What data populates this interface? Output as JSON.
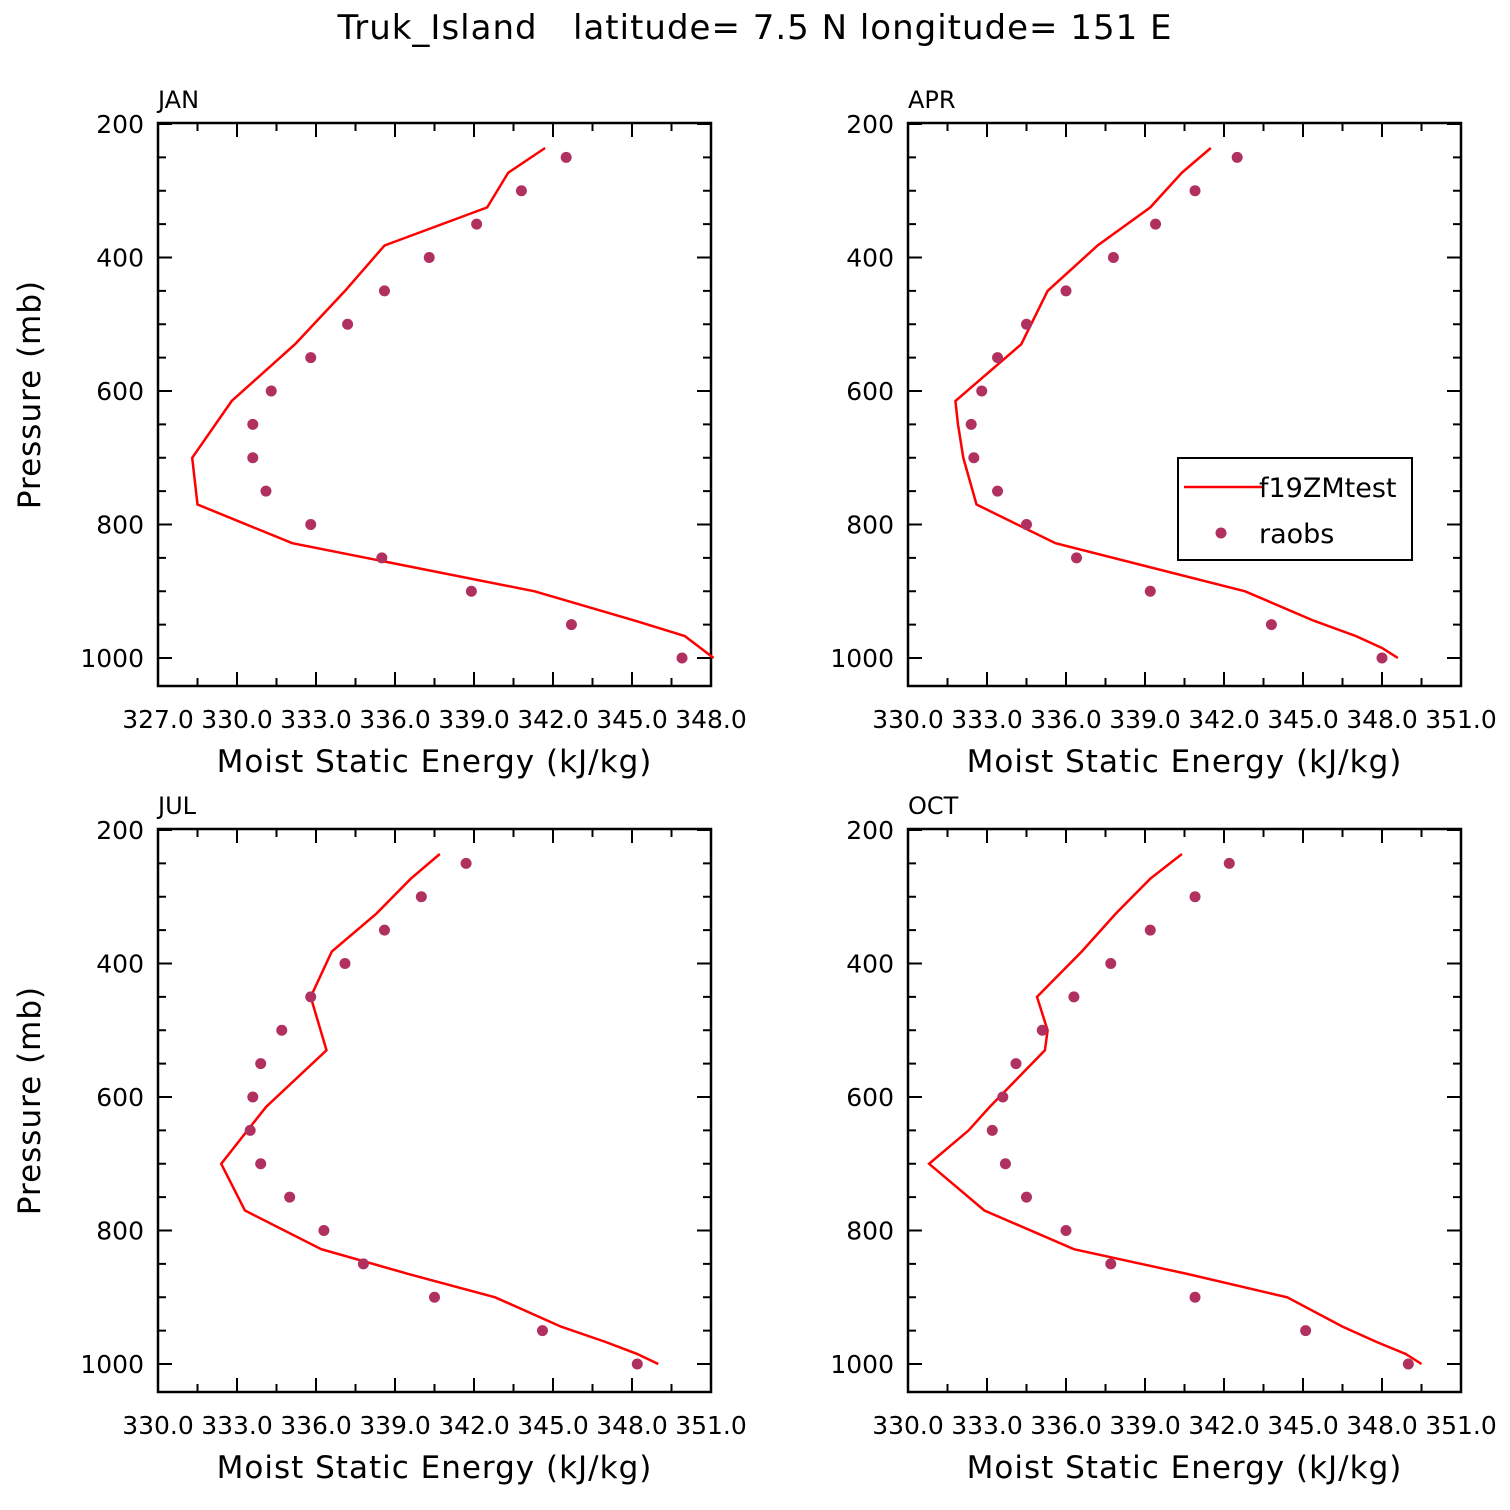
{
  "title": "Truk_Island   latitude= 7.5 N longitude= 151 E",
  "colors": {
    "model": "#ff0000",
    "obs": "#b03060"
  },
  "legend": {
    "model_label": "f19ZMtest",
    "obs_label": "raobs",
    "placement": "right-middle of APR panel"
  },
  "chart_data": [
    {
      "type": "line",
      "title": "JAN",
      "xlabel": "Moist Static Energy (kJ/kg)",
      "ylabel": "Pressure (mb)",
      "xlim": [
        327,
        348
      ],
      "ylim": [
        1000,
        200
      ],
      "xticks": [
        327,
        330,
        333,
        336,
        339,
        342,
        345,
        348
      ],
      "xtick_labels": [
        "327.0",
        "330.0",
        "333.0",
        "336.0",
        "339.0",
        "342.0",
        "345.0",
        "348.0"
      ],
      "yticks": [
        200,
        400,
        600,
        800,
        1000
      ],
      "ytick_labels": [
        "200",
        "400",
        "600",
        "800",
        "1000"
      ],
      "series": [
        {
          "name": "f19ZMtest",
          "kind": "line",
          "x": [
            341.7,
            340.3,
            339.5,
            335.6,
            334.1,
            332.2,
            329.8,
            328.3,
            328.5,
            332.1,
            341.3,
            345.1,
            347.0,
            347.6,
            348.1
          ],
          "y": [
            236,
            273,
            325,
            382,
            450,
            530,
            615,
            700,
            770,
            828,
            900,
            944,
            967,
            985,
            1000
          ]
        },
        {
          "name": "raobs",
          "kind": "scatter",
          "x": [
            342.5,
            340.8,
            339.1,
            337.3,
            335.6,
            334.2,
            332.8,
            331.3,
            330.6,
            330.6,
            331.1,
            332.8,
            335.5,
            338.9,
            342.7,
            346.9
          ],
          "y": [
            250,
            300,
            350,
            400,
            450,
            500,
            550,
            600,
            650,
            700,
            750,
            800,
            850,
            900,
            950,
            1000
          ]
        }
      ]
    },
    {
      "type": "line",
      "title": "APR",
      "xlabel": "Moist Static Energy (kJ/kg)",
      "ylabel": "",
      "xlim": [
        330,
        351
      ],
      "ylim": [
        1000,
        200
      ],
      "xticks": [
        330,
        333,
        336,
        339,
        342,
        345,
        348,
        351
      ],
      "xtick_labels": [
        "330.0",
        "333.0",
        "336.0",
        "339.0",
        "342.0",
        "345.0",
        "348.0",
        "351.0"
      ],
      "yticks": [
        200,
        400,
        600,
        800,
        1000
      ],
      "ytick_labels": [
        "200",
        "400",
        "600",
        "800",
        "1000"
      ],
      "show_legend": true,
      "series": [
        {
          "name": "f19ZMtest",
          "kind": "line",
          "x": [
            341.5,
            340.4,
            339.2,
            337.2,
            335.3,
            334.3,
            331.8,
            331.9,
            332.1,
            332.6,
            335.6,
            342.8,
            345.4,
            347.0,
            348.0,
            348.6
          ],
          "y": [
            236,
            273,
            325,
            382,
            450,
            530,
            615,
            650,
            700,
            770,
            828,
            900,
            944,
            967,
            985,
            1000
          ]
        },
        {
          "name": "raobs",
          "kind": "scatter",
          "x": [
            342.5,
            340.9,
            339.4,
            337.8,
            336.0,
            334.5,
            333.4,
            332.8,
            332.4,
            332.5,
            333.4,
            334.5,
            336.4,
            339.2,
            343.8,
            348.0
          ],
          "y": [
            250,
            300,
            350,
            400,
            450,
            500,
            550,
            600,
            650,
            700,
            750,
            800,
            850,
            900,
            950,
            1000
          ]
        }
      ]
    },
    {
      "type": "line",
      "title": "JUL",
      "xlabel": "Moist Static Energy (kJ/kg)",
      "ylabel": "Pressure (mb)",
      "xlim": [
        330,
        351
      ],
      "ylim": [
        1000,
        200
      ],
      "xticks": [
        330,
        333,
        336,
        339,
        342,
        345,
        348,
        351
      ],
      "xtick_labels": [
        "330.0",
        "333.0",
        "336.0",
        "339.0",
        "342.0",
        "345.0",
        "348.0",
        "351.0"
      ],
      "yticks": [
        200,
        400,
        600,
        800,
        1000
      ],
      "ytick_labels": [
        "200",
        "400",
        "600",
        "800",
        "1000"
      ],
      "series": [
        {
          "name": "f19ZMtest",
          "kind": "line",
          "x": [
            340.7,
            339.6,
            338.3,
            336.6,
            335.8,
            336.4,
            334.1,
            333.4,
            332.4,
            333.3,
            336.2,
            339.5,
            342.8,
            345.3,
            347.0,
            348.2,
            349.0
          ],
          "y": [
            236,
            273,
            325,
            382,
            450,
            530,
            615,
            650,
            700,
            770,
            828,
            865,
            900,
            944,
            967,
            985,
            1000
          ]
        },
        {
          "name": "raobs",
          "kind": "scatter",
          "x": [
            341.7,
            340.0,
            338.6,
            337.1,
            335.8,
            334.7,
            333.9,
            333.6,
            333.5,
            333.9,
            335.0,
            336.3,
            337.8,
            340.5,
            344.6,
            348.2
          ],
          "y": [
            250,
            300,
            350,
            400,
            450,
            500,
            550,
            600,
            650,
            700,
            750,
            800,
            850,
            900,
            950,
            1000
          ]
        }
      ]
    },
    {
      "type": "line",
      "title": "OCT",
      "xlabel": "Moist Static Energy (kJ/kg)",
      "ylabel": "",
      "xlim": [
        330,
        351
      ],
      "ylim": [
        1000,
        200
      ],
      "xticks": [
        330,
        333,
        336,
        339,
        342,
        345,
        348,
        351
      ],
      "xtick_labels": [
        "330.0",
        "333.0",
        "336.0",
        "339.0",
        "342.0",
        "345.0",
        "348.0",
        "351.0"
      ],
      "yticks": [
        200,
        400,
        600,
        800,
        1000
      ],
      "ytick_labels": [
        "200",
        "400",
        "600",
        "800",
        "1000"
      ],
      "series": [
        {
          "name": "f19ZMtest",
          "kind": "line",
          "x": [
            340.4,
            339.2,
            337.9,
            336.6,
            334.9,
            335.3,
            335.2,
            333.1,
            332.3,
            330.8,
            332.9,
            336.3,
            340.6,
            344.4,
            346.5,
            347.8,
            348.9,
            349.5
          ],
          "y": [
            236,
            273,
            325,
            382,
            450,
            500,
            530,
            615,
            650,
            700,
            770,
            828,
            865,
            900,
            944,
            967,
            985,
            1000
          ]
        },
        {
          "name": "raobs",
          "kind": "scatter",
          "x": [
            342.2,
            340.9,
            339.2,
            337.7,
            336.3,
            335.1,
            334.1,
            333.6,
            333.2,
            333.7,
            334.5,
            336.0,
            337.7,
            340.9,
            345.1,
            349.0
          ],
          "y": [
            250,
            300,
            350,
            400,
            450,
            500,
            550,
            600,
            650,
            700,
            750,
            800,
            850,
            900,
            950,
            1000
          ]
        }
      ]
    }
  ]
}
